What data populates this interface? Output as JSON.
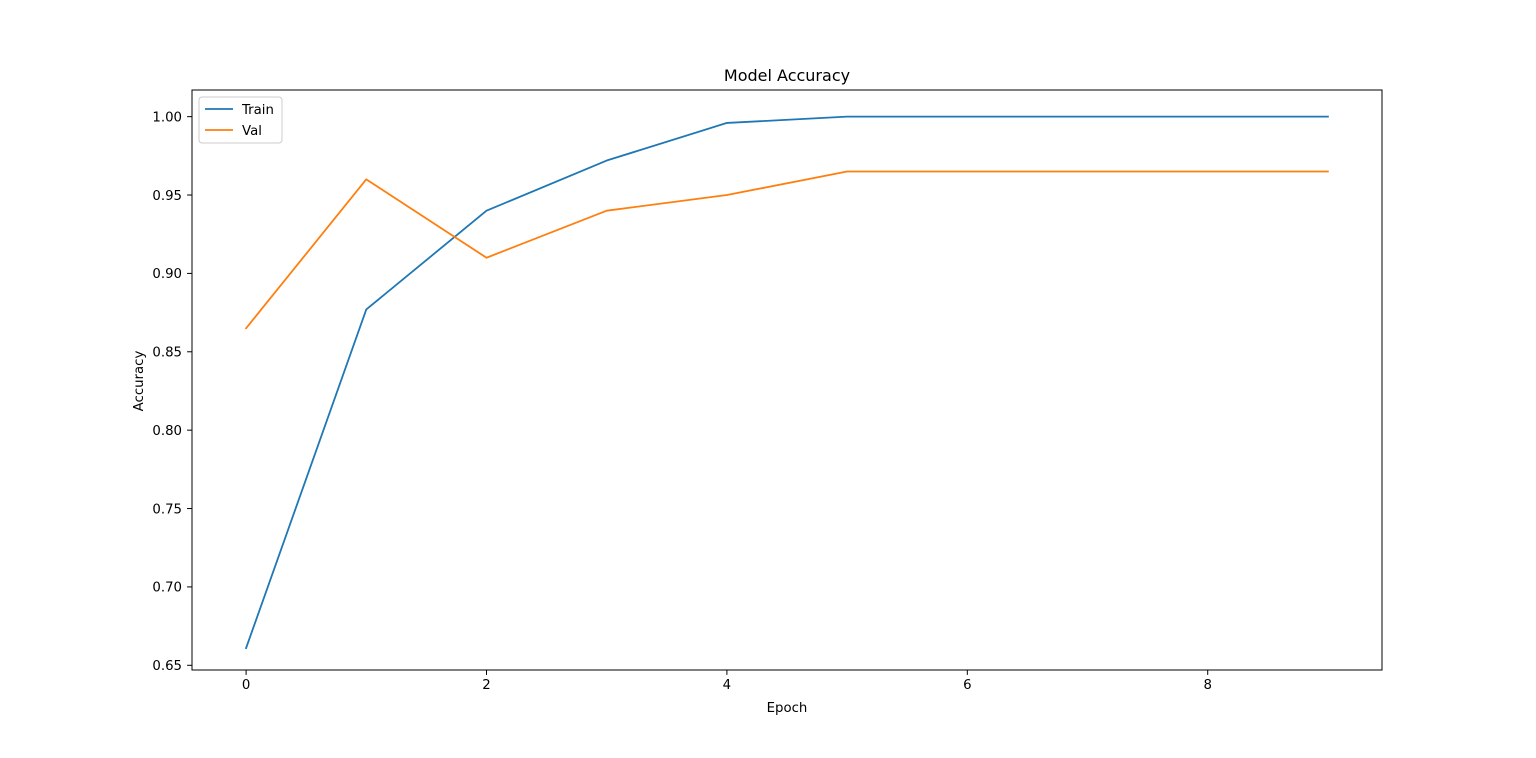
{
  "chart_data": {
    "type": "line",
    "title": "Model Accuracy",
    "xlabel": "Epoch",
    "ylabel": "Accuracy",
    "x": [
      0,
      1,
      2,
      3,
      4,
      5,
      6,
      7,
      8,
      9
    ],
    "xlim": [
      -0.45,
      9.45
    ],
    "ylim": [
      0.647,
      1.017
    ],
    "xticks": [
      0,
      2,
      4,
      6,
      8
    ],
    "yticks": [
      0.65,
      0.7,
      0.75,
      0.8,
      0.85,
      0.9,
      0.95,
      1.0
    ],
    "xtick_labels": [
      "0",
      "2",
      "4",
      "6",
      "8"
    ],
    "ytick_labels": [
      "0.65",
      "0.70",
      "0.75",
      "0.80",
      "0.85",
      "0.90",
      "0.95",
      "1.00"
    ],
    "grid": false,
    "legend_position": "top-left",
    "series": [
      {
        "name": "Train",
        "color": "#1f77b4",
        "values": [
          0.661,
          0.877,
          0.94,
          0.972,
          0.996,
          1.0,
          1.0,
          1.0,
          1.0,
          1.0
        ]
      },
      {
        "name": "Val",
        "color": "#ff7f0e",
        "values": [
          0.865,
          0.96,
          0.91,
          0.94,
          0.95,
          0.965,
          0.965,
          0.965,
          0.965,
          0.965
        ]
      }
    ]
  }
}
